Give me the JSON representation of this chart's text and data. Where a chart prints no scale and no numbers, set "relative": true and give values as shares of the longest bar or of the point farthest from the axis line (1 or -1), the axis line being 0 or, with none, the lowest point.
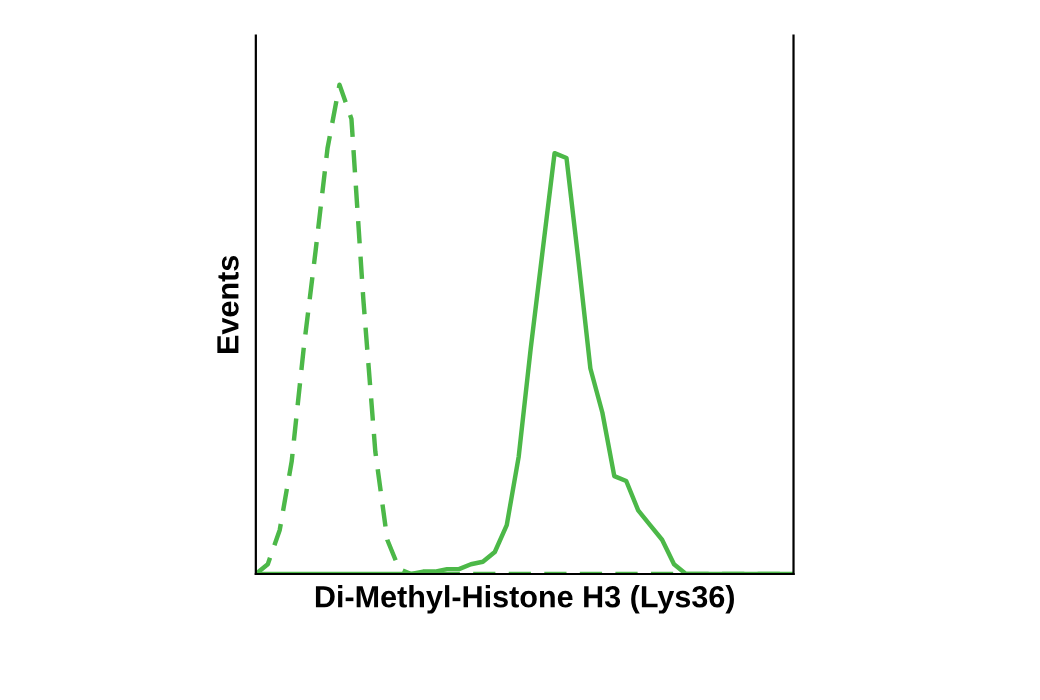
{
  "chart_data": {
    "type": "line",
    "relative": true,
    "xlabel": "Di-Methyl-Histone H3 (Lys36)",
    "ylabel": "Events",
    "categories": [
      null,
      null,
      null,
      null,
      null,
      null,
      null,
      null,
      null,
      null,
      null,
      null,
      null,
      null,
      null,
      null,
      null,
      null,
      null,
      null,
      null,
      null,
      null,
      null,
      null,
      null,
      null,
      null,
      null,
      null,
      null,
      null,
      null,
      null,
      null,
      null,
      null,
      null,
      null,
      null,
      null,
      null,
      null,
      null,
      null,
      null
    ],
    "series": [
      {
        "color": "#4cb848",
        "line_style": "dashed",
        "values": [
          0,
          0.02,
          0.09,
          0.23,
          0.46,
          0.66,
          0.87,
          1.0,
          0.93,
          0.56,
          0.25,
          0.07,
          0.01,
          0,
          0,
          0,
          0,
          0,
          0,
          0,
          0,
          0,
          0,
          0,
          0,
          0,
          0,
          0,
          0,
          0,
          0,
          0,
          0,
          0,
          0,
          0,
          0,
          0,
          0,
          0,
          0,
          0,
          0,
          0,
          0,
          0
        ]
      },
      {
        "color": "#4cb848",
        "line_style": "solid",
        "values": [
          0,
          0,
          0,
          0,
          0,
          0,
          0,
          0,
          0,
          0,
          0,
          0,
          0,
          0,
          0.005,
          0.005,
          0.01,
          0.01,
          0.02,
          0.025,
          0.045,
          0.1,
          0.24,
          0.46,
          0.66,
          0.86,
          0.85,
          0.64,
          0.42,
          0.33,
          0.2,
          0.19,
          0.13,
          0.1,
          0.07,
          0.02,
          0,
          0,
          0,
          0,
          0,
          0,
          0,
          0,
          0,
          0
        ]
      }
    ],
    "tick_labels": false
  }
}
